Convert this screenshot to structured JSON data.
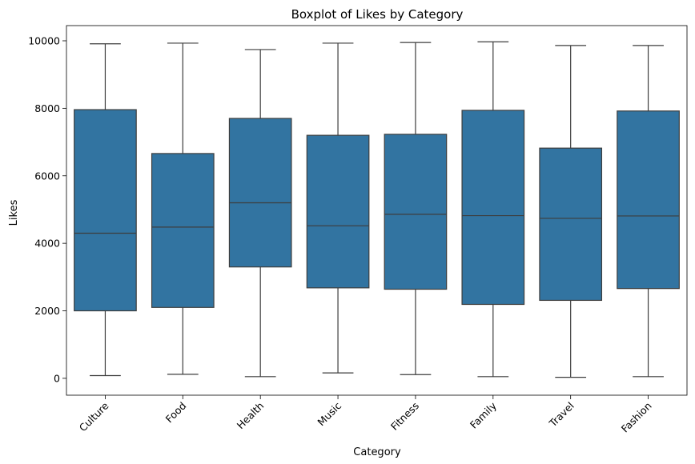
{
  "chart_data": {
    "type": "box",
    "title": "Boxplot of Likes by Category",
    "xlabel": "Category",
    "ylabel": "Likes",
    "ylim": [
      -500,
      10450
    ],
    "yticks": [
      0,
      2000,
      4000,
      6000,
      8000,
      10000
    ],
    "ytick_labels": [
      "0",
      "2000",
      "4000",
      "6000",
      "8000",
      "10000"
    ],
    "grid": false,
    "box_color": "#3274a1",
    "line_color": "#3d3d3d",
    "categories": [
      "Culture",
      "Food",
      "Health",
      "Music",
      "Fitness",
      "Family",
      "Travel",
      "Fashion"
    ],
    "boxes": [
      {
        "category": "Culture",
        "min": 80,
        "q1": 2000,
        "median": 4300,
        "q3": 7960,
        "max": 9910
      },
      {
        "category": "Food",
        "min": 120,
        "q1": 2100,
        "median": 4480,
        "q3": 6660,
        "max": 9930
      },
      {
        "category": "Health",
        "min": 50,
        "q1": 3300,
        "median": 5200,
        "q3": 7700,
        "max": 9740
      },
      {
        "category": "Music",
        "min": 160,
        "q1": 2680,
        "median": 4520,
        "q3": 7200,
        "max": 9930
      },
      {
        "category": "Fitness",
        "min": 110,
        "q1": 2640,
        "median": 4860,
        "q3": 7230,
        "max": 9950
      },
      {
        "category": "Family",
        "min": 50,
        "q1": 2190,
        "median": 4820,
        "q3": 7940,
        "max": 9970
      },
      {
        "category": "Travel",
        "min": 30,
        "q1": 2310,
        "median": 4740,
        "q3": 6820,
        "max": 9860
      },
      {
        "category": "Fashion",
        "min": 50,
        "q1": 2660,
        "median": 4810,
        "q3": 7920,
        "max": 9860
      }
    ]
  }
}
